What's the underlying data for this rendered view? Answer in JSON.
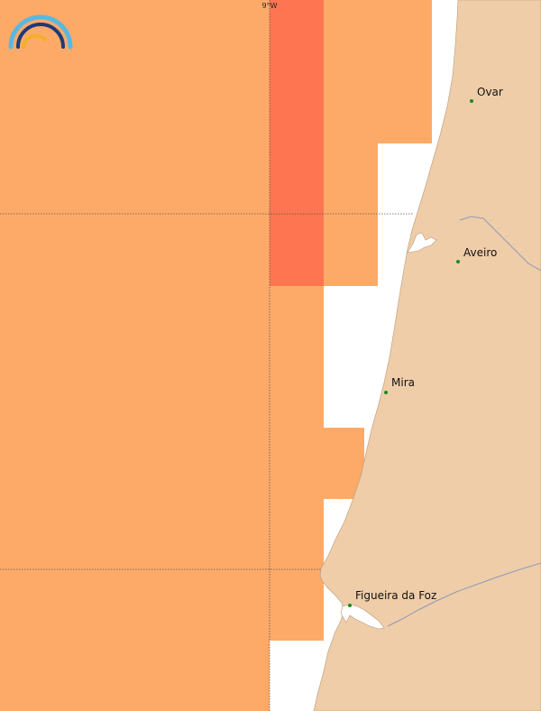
{
  "map": {
    "grid": {
      "meridian_label": "9°W"
    },
    "colors": {
      "sea": "#ffffff",
      "land": "#efcda9",
      "cell_orange": "#fdaa68",
      "cell_red": "#fe7551",
      "gridline": "#555555",
      "city_dot": "#1e8a1e",
      "river": "#8f9ab8"
    },
    "cells": [
      {
        "level": "orange"
      },
      {
        "level": "red"
      },
      {
        "level": "orange"
      },
      {
        "level": "orange"
      },
      {
        "level": "red"
      },
      {
        "level": "orange"
      },
      {
        "level": "orange"
      },
      {
        "level": "orange"
      },
      {
        "level": "orange"
      },
      {
        "level": "orange"
      }
    ],
    "places": [
      {
        "name": "Ovar"
      },
      {
        "name": "Aveiro"
      },
      {
        "name": "Mira"
      },
      {
        "name": "Figueira da Foz"
      }
    ],
    "logo": {
      "icon": "rainbow-logo-icon"
    }
  }
}
